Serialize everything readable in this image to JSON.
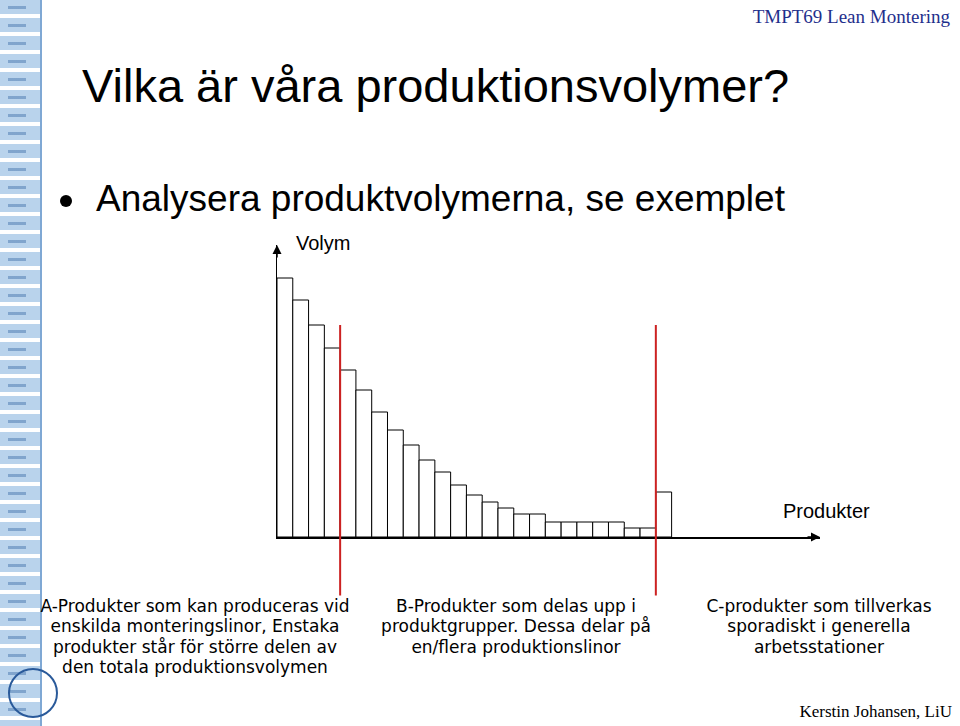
{
  "slide": {
    "header": "TMPT69 Lean Montering",
    "title": "Vilka är våra produktionsvolymer?",
    "bullet": "Analysera produktvolymerna, se exemplet",
    "footer": "Kerstin Johansen, LiU"
  },
  "chart_data": {
    "type": "bar",
    "ylabel": "Volym",
    "xlabel": "Produkter",
    "categories": [
      null,
      null,
      null,
      null,
      null,
      null,
      null,
      null,
      null,
      null,
      null,
      null,
      null,
      null,
      null,
      null,
      null,
      null,
      null,
      null,
      null,
      null,
      null,
      null,
      null
    ],
    "values": [
      259,
      237,
      212,
      189,
      167,
      147,
      125,
      107,
      92,
      77,
      65,
      52,
      42,
      35,
      29,
      23,
      23,
      15,
      15,
      15,
      15,
      15,
      9,
      9,
      45
    ],
    "color": "#ffffff",
    "xlim": [
      -0.5,
      33.9
    ],
    "ylim": [
      0,
      292
    ],
    "tick_labels": false,
    "grid": false,
    "groups": [
      {
        "text": "A-Produkter som kan produceras vid enskilda monteringslinor, Enstaka produkter står för större delen av den totala produktionsvolymen",
        "count": 4
      },
      {
        "text": "B-Produkter som delas upp i produktgrupper. Dessa delar på en/flera produktionslinor",
        "count": 20
      },
      {
        "text": "C-produkter som tillverkas sporadiskt i generella arbetsstationer",
        "count": 1
      }
    ]
  }
}
